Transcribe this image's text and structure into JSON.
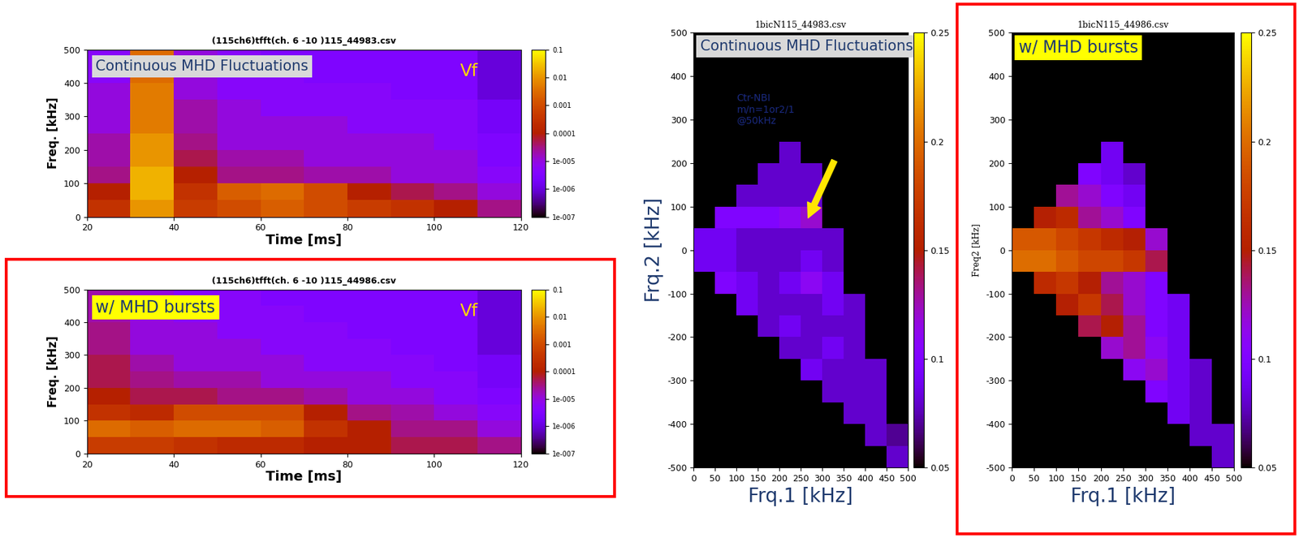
{
  "chart_data": [
    {
      "type": "heatmap",
      "title": "(115ch6)tfft(ch. 6 -10 )115_44983.csv",
      "x_label": "Time [ms]",
      "y_label": "Freq. [kHz]",
      "annotations": [
        "Continuous MHD Fluctuations",
        "Vf"
      ],
      "xlim": [
        20,
        120
      ],
      "xticks": [
        20,
        40,
        60,
        80,
        100,
        120
      ],
      "ylim": [
        0,
        500
      ],
      "yticks": [
        0,
        100,
        200,
        300,
        400,
        500
      ],
      "x_edges": [
        20,
        30,
        40,
        50,
        60,
        70,
        80,
        90,
        100,
        110,
        120
      ],
      "y_edges": [
        0,
        50,
        100,
        150,
        200,
        250,
        300,
        350,
        400,
        450,
        500
      ],
      "cells": [
        [
          0.0003,
          0.01,
          0.0005,
          0.001,
          0.002,
          0.001,
          0.0005,
          0.0003,
          0.0001,
          3e-05
        ],
        [
          0.0001,
          0.02,
          0.0003,
          0.002,
          0.003,
          0.001,
          0.0001,
          5e-05,
          3e-05,
          1e-05
        ],
        [
          3e-05,
          0.02,
          0.0001,
          3e-05,
          3e-05,
          2e-05,
          2e-05,
          1e-05,
          1e-05,
          5e-06
        ],
        [
          2e-05,
          0.01,
          5e-05,
          2e-05,
          2e-05,
          1e-05,
          1e-05,
          1e-05,
          1e-05,
          3e-06
        ],
        [
          2e-05,
          0.01,
          3e-05,
          1e-05,
          1e-05,
          1e-05,
          1e-05,
          1e-05,
          5e-06,
          3e-06
        ],
        [
          1e-05,
          0.005,
          2e-05,
          1e-05,
          1e-05,
          1e-05,
          5e-06,
          5e-06,
          5e-06,
          2e-06
        ],
        [
          1e-05,
          0.005,
          2e-05,
          1e-05,
          5e-06,
          5e-06,
          5e-06,
          5e-06,
          5e-06,
          2e-06
        ],
        [
          1e-05,
          0.005,
          1e-05,
          5e-06,
          5e-06,
          5e-06,
          5e-06,
          3e-06,
          3e-06,
          1e-06
        ],
        [
          5e-06,
          0.003,
          1e-05,
          5e-06,
          5e-06,
          3e-06,
          3e-06,
          3e-06,
          3e-06,
          1e-06
        ],
        [
          5e-06,
          0.003,
          1e-05,
          5e-06,
          3e-06,
          3e-06,
          3e-06,
          3e-06,
          3e-06,
          1e-06
        ]
      ],
      "colorbar_log": true,
      "colorbar_range": [
        1e-07,
        0.1
      ],
      "colorbar_ticks": [
        0.1,
        0.01,
        0.001,
        0.0001,
        {
          "value": 1e-05,
          "label": "1e-005"
        },
        {
          "value": 1e-06,
          "label": "1e-006"
        },
        {
          "value": 1e-07,
          "label": "1e-007"
        }
      ]
    },
    {
      "type": "heatmap",
      "title": "(115ch6)tfft(ch. 6 -10 )115_44986.csv",
      "x_label": "Time [ms]",
      "y_label": "Freq. [kHz]",
      "annotations": [
        "w/ MHD bursts",
        "Vf"
      ],
      "xlim": [
        20,
        120
      ],
      "xticks": [
        20,
        40,
        60,
        80,
        100,
        120
      ],
      "ylim": [
        0,
        500
      ],
      "yticks": [
        0,
        100,
        200,
        300,
        400,
        500
      ],
      "x_edges": [
        20,
        30,
        40,
        50,
        60,
        70,
        80,
        90,
        100,
        110,
        120
      ],
      "y_edges": [
        0,
        50,
        100,
        150,
        200,
        250,
        300,
        350,
        400,
        450,
        500
      ],
      "cells": [
        [
          0.0005,
          0.0005,
          0.0003,
          0.0002,
          0.0002,
          0.0001,
          0.0001,
          5e-05,
          5e-05,
          3e-05
        ],
        [
          0.003,
          0.002,
          0.003,
          0.003,
          0.002,
          0.0003,
          0.0001,
          3e-05,
          3e-05,
          1e-05
        ],
        [
          0.0003,
          0.0002,
          0.001,
          0.001,
          0.001,
          0.0001,
          3e-05,
          2e-05,
          1e-05,
          5e-06
        ],
        [
          0.0001,
          5e-05,
          5e-05,
          3e-05,
          3e-05,
          2e-05,
          1e-05,
          1e-05,
          5e-06,
          3e-06
        ],
        [
          5e-05,
          3e-05,
          2e-05,
          2e-05,
          1e-05,
          1e-05,
          1e-05,
          5e-06,
          5e-06,
          2e-06
        ],
        [
          5e-05,
          2e-05,
          1e-05,
          1e-05,
          1e-05,
          5e-06,
          5e-06,
          5e-06,
          3e-06,
          2e-06
        ],
        [
          3e-05,
          1e-05,
          1e-05,
          1e-05,
          5e-06,
          5e-06,
          5e-06,
          3e-06,
          3e-06,
          1e-06
        ],
        [
          3e-05,
          1e-05,
          1e-05,
          5e-06,
          5e-06,
          5e-06,
          3e-06,
          3e-06,
          3e-06,
          1e-06
        ],
        [
          2e-05,
          1e-05,
          5e-06,
          5e-06,
          5e-06,
          3e-06,
          3e-06,
          3e-06,
          3e-06,
          1e-06
        ],
        [
          2e-05,
          1e-05,
          5e-06,
          5e-06,
          3e-06,
          3e-06,
          3e-06,
          3e-06,
          3e-06,
          1e-06
        ]
      ],
      "colorbar_log": true,
      "colorbar_range": [
        1e-07,
        0.1
      ],
      "colorbar_ticks": [
        0.1,
        0.01,
        0.001,
        0.0001,
        {
          "value": 1e-05,
          "label": "1e-005"
        },
        {
          "value": 1e-06,
          "label": "1e-006"
        },
        {
          "value": 1e-07,
          "label": "1e-007"
        }
      ]
    },
    {
      "type": "heatmap",
      "title": "1bicN115_44983.csv",
      "x_label": "Frq.1 [kHz]",
      "y_label": "Frq.2 [kHz]",
      "annotations": [
        "Continuous MHD Fluctuations",
        "Ctr-NBI\nm/n=1or2/1\n@50kHz"
      ],
      "xlim": [
        0,
        500
      ],
      "xticks": [
        0,
        50,
        100,
        150,
        200,
        250,
        300,
        350,
        400,
        450,
        500
      ],
      "ylim": [
        -500,
        500
      ],
      "yticks": [
        -500,
        -400,
        -300,
        -200,
        -100,
        0,
        100,
        200,
        300,
        400,
        500
      ],
      "x_edges": [
        0,
        50,
        100,
        150,
        200,
        250,
        300,
        350,
        400,
        450,
        500
      ],
      "y_edges": [
        -500,
        -450,
        -400,
        -350,
        -300,
        -250,
        -200,
        -150,
        -100,
        -50,
        0,
        50,
        100,
        150,
        200,
        250
      ],
      "cells": [
        [
          null,
          null,
          null,
          null,
          null,
          null,
          null,
          null,
          null,
          0.08
        ],
        [
          null,
          null,
          null,
          null,
          null,
          null,
          null,
          null,
          0.08,
          0.07
        ],
        [
          null,
          null,
          null,
          null,
          null,
          null,
          null,
          0.08,
          0.08,
          null
        ],
        [
          null,
          null,
          null,
          null,
          null,
          null,
          0.08,
          0.08,
          0.08,
          null
        ],
        [
          null,
          null,
          null,
          null,
          null,
          0.09,
          0.08,
          0.08,
          0.08,
          null
        ],
        [
          null,
          null,
          null,
          null,
          0.08,
          0.08,
          0.09,
          0.08,
          null,
          null
        ],
        [
          null,
          null,
          null,
          0.08,
          0.09,
          0.08,
          0.08,
          0.08,
          null,
          null
        ],
        [
          null,
          null,
          0.09,
          0.08,
          0.08,
          0.08,
          0.09,
          0.08,
          null,
          null
        ],
        [
          null,
          0.1,
          0.09,
          0.08,
          0.09,
          0.11,
          0.09,
          null,
          null,
          null
        ],
        [
          0.09,
          0.09,
          0.08,
          0.08,
          0.08,
          0.09,
          0.08,
          null,
          null,
          null
        ],
        [
          0.09,
          0.09,
          0.08,
          0.08,
          0.08,
          0.08,
          0.08,
          null,
          null,
          null
        ],
        [
          null,
          0.1,
          0.1,
          0.1,
          0.11,
          0.12,
          null,
          null,
          null,
          null
        ],
        [
          null,
          null,
          0.08,
          0.08,
          0.08,
          0.08,
          null,
          null,
          null,
          null
        ],
        [
          null,
          null,
          null,
          0.08,
          0.08,
          0.08,
          null,
          null,
          null,
          null
        ],
        [
          null,
          null,
          null,
          null,
          0.08,
          null,
          null,
          null,
          null,
          null
        ]
      ],
      "colorbar_log": false,
      "colorbar_range": [
        0.05,
        0.25
      ],
      "colorbar_ticks": [
        0.05,
        0.1,
        0.15,
        0.2,
        0.25
      ]
    },
    {
      "type": "heatmap",
      "title": "1bicN115_44986.csv",
      "x_label": "Frq.1 [kHz]",
      "y_label": "Freq2 [kHz]",
      "annotations": [
        "w/ MHD bursts"
      ],
      "xlim": [
        0,
        500
      ],
      "xticks": [
        0,
        50,
        100,
        150,
        200,
        250,
        300,
        350,
        400,
        450,
        500
      ],
      "ylim": [
        -500,
        500
      ],
      "yticks": [
        -500,
        -400,
        -300,
        -200,
        -100,
        0,
        100,
        200,
        300,
        400,
        500
      ],
      "x_edges": [
        0,
        50,
        100,
        150,
        200,
        250,
        300,
        350,
        400,
        450,
        500
      ],
      "y_edges": [
        -500,
        -450,
        -400,
        -350,
        -300,
        -250,
        -200,
        -150,
        -100,
        -50,
        0,
        50,
        100,
        150,
        200,
        250
      ],
      "cells": [
        [
          null,
          null,
          null,
          null,
          null,
          null,
          null,
          null,
          null,
          0.08
        ],
        [
          null,
          null,
          null,
          null,
          null,
          null,
          null,
          null,
          0.08,
          0.08
        ],
        [
          null,
          null,
          null,
          null,
          null,
          null,
          null,
          0.09,
          0.08,
          null
        ],
        [
          null,
          null,
          null,
          null,
          null,
          null,
          0.1,
          0.09,
          0.08,
          null
        ],
        [
          null,
          null,
          null,
          null,
          null,
          0.11,
          0.12,
          0.09,
          0.08,
          null
        ],
        [
          null,
          null,
          null,
          null,
          0.12,
          0.13,
          0.11,
          0.09,
          null,
          null
        ],
        [
          null,
          null,
          null,
          0.14,
          0.15,
          0.13,
          0.1,
          0.09,
          null,
          null
        ],
        [
          null,
          null,
          0.15,
          0.17,
          0.14,
          0.12,
          0.1,
          0.09,
          null,
          null
        ],
        [
          null,
          0.16,
          0.17,
          0.15,
          0.13,
          0.12,
          0.1,
          null,
          null,
          null
        ],
        [
          0.2,
          0.2,
          0.19,
          0.18,
          0.18,
          0.17,
          0.14,
          null,
          null,
          null
        ],
        [
          0.19,
          0.19,
          0.18,
          0.17,
          0.16,
          0.15,
          0.12,
          null,
          null,
          null
        ],
        [
          null,
          0.15,
          0.16,
          0.13,
          0.12,
          0.1,
          null,
          null,
          null,
          null
        ],
        [
          null,
          null,
          0.13,
          0.12,
          0.1,
          0.09,
          null,
          null,
          null,
          null
        ],
        [
          null,
          null,
          null,
          0.1,
          0.09,
          0.08,
          null,
          null,
          null,
          null
        ],
        [
          null,
          null,
          null,
          null,
          0.09,
          null,
          null,
          null,
          null,
          null
        ]
      ],
      "colorbar_log": false,
      "colorbar_range": [
        0.05,
        0.25
      ],
      "colorbar_ticks": [
        0.05,
        0.1,
        0.15,
        0.2,
        0.25
      ]
    }
  ]
}
